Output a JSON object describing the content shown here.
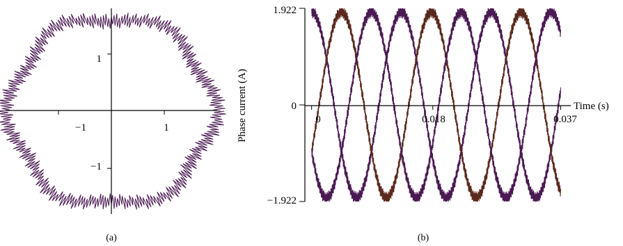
{
  "chart_data": [
    {
      "type": "scatter",
      "panel_label": "(a)",
      "title": "",
      "xlabel": "",
      "ylabel": "",
      "xlim": [
        -2,
        2
      ],
      "ylim": [
        -1.8,
        1.8
      ],
      "x_ticks": [
        {
          "value": -1,
          "label": "−1"
        },
        {
          "value": 1,
          "label": "1"
        }
      ],
      "y_ticks": [
        {
          "value": 1,
          "label": "1"
        },
        {
          "value": -1,
          "label": "−1"
        }
      ],
      "series": [
        {
          "color": "#4a1a52",
          "radius": 1.92,
          "ripple": 0.12,
          "sector_jumps": 6
        }
      ],
      "grid": false
    },
    {
      "type": "line",
      "panel_label": "(b)",
      "title": "",
      "xlabel": "Time (s)",
      "ylabel": "Phase current (A)",
      "xlim": [
        -0.001,
        0.0385
      ],
      "ylim": [
        -1.922,
        1.922
      ],
      "x_ticks": [
        {
          "value": 0,
          "label": "0"
        },
        {
          "value": 0.018,
          "label": "0.018"
        },
        {
          "value": 0.037,
          "label": "0.037"
        }
      ],
      "y_ticks": [
        {
          "value": 1.922,
          "label": "1.922"
        },
        {
          "value": 0,
          "label": "0"
        },
        {
          "value": -1.922,
          "label": "−1.922"
        }
      ],
      "amplitude": 1.85,
      "frequency_hz": 75,
      "ripple": 0.12,
      "series": [
        {
          "phase_deg": 90,
          "color": "#4a1a52"
        },
        {
          "phase_deg": -30,
          "color": "#5a2a1e"
        },
        {
          "phase_deg": 210,
          "color": "#4a1a52"
        }
      ],
      "grid": false
    }
  ]
}
